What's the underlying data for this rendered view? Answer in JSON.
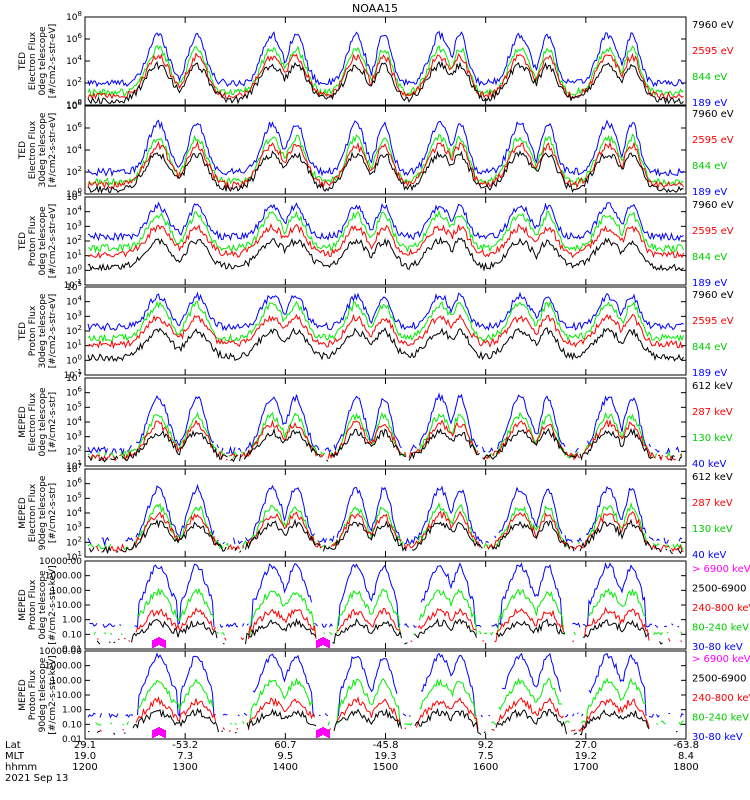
{
  "title": "NOAA15",
  "colors": {
    "c1": "#0000ff",
    "c2": "#ff0000",
    "c3": "#00ee00",
    "c4": "#000000",
    "magenta": "#ff00ff"
  },
  "panels": [
    {
      "ylabel": [
        "TED",
        "Electron Flux",
        "0deg telescope",
        "[#/cm2-s-str-eV]"
      ],
      "yticks": [
        "10^0",
        "10^2",
        "10^4",
        "10^6",
        "10^8"
      ],
      "legend": [
        {
          "text": "7960 eV",
          "color": "#000000"
        },
        {
          "text": "2595 eV",
          "color": "#ff0000"
        },
        {
          "text": "844 eV",
          "color": "#00cc00"
        },
        {
          "text": "189 eV",
          "color": "#0000ff"
        }
      ]
    },
    {
      "ylabel": [
        "TED",
        "Electron Flux",
        "30deg telescope",
        "[#/cm2-s-str-eV]"
      ],
      "yticks": [
        "10^0",
        "10^2",
        "10^4",
        "10^6",
        "10^8"
      ],
      "legend": [
        {
          "text": "7960 eV",
          "color": "#000000"
        },
        {
          "text": "2595 eV",
          "color": "#ff0000"
        },
        {
          "text": "844 eV",
          "color": "#00cc00"
        },
        {
          "text": "189 eV",
          "color": "#0000ff"
        }
      ]
    },
    {
      "ylabel": [
        "TED",
        "Proton Flux",
        "0deg telescope",
        "[#/cm2-s-str-eV]"
      ],
      "yticks": [
        "10^-1",
        "10^0",
        "10^1",
        "10^2",
        "10^3",
        "10^4",
        "10^5"
      ],
      "legend": [
        {
          "text": "7960 eV",
          "color": "#000000"
        },
        {
          "text": "2595 eV",
          "color": "#ff0000"
        },
        {
          "text": "844 eV",
          "color": "#00cc00"
        },
        {
          "text": "189 eV",
          "color": "#0000ff"
        }
      ]
    },
    {
      "ylabel": [
        "TED",
        "Proton Flux",
        "30deg telescope",
        "[#/cm2-s-str-eV]"
      ],
      "yticks": [
        "10^-1",
        "10^0",
        "10^1",
        "10^2",
        "10^3",
        "10^4",
        "10^5"
      ],
      "legend": [
        {
          "text": "7960 eV",
          "color": "#000000"
        },
        {
          "text": "2595 eV",
          "color": "#ff0000"
        },
        {
          "text": "844 eV",
          "color": "#00cc00"
        },
        {
          "text": "189 eV",
          "color": "#0000ff"
        }
      ]
    },
    {
      "ylabel": [
        "MEPED",
        "Electron Flux",
        "0deg telescope",
        "[#/cm2-s-str]"
      ],
      "yticks": [
        "10^1",
        "10^2",
        "10^3",
        "10^4",
        "10^5",
        "10^6",
        "10^7"
      ],
      "legend": [
        {
          "text": "612 keV",
          "color": "#000000"
        },
        {
          "text": "287 keV",
          "color": "#ff0000"
        },
        {
          "text": "130 keV",
          "color": "#00cc00"
        },
        {
          "text": "40 keV",
          "color": "#0000ff"
        }
      ]
    },
    {
      "ylabel": [
        "MEPED",
        "Electron Flux",
        "90deg telescope",
        "[#/cm2-s-str]"
      ],
      "yticks": [
        "10^1",
        "10^2",
        "10^3",
        "10^4",
        "10^5",
        "10^6",
        "10^7"
      ],
      "legend": [
        {
          "text": "612 keV",
          "color": "#000000"
        },
        {
          "text": "287 keV",
          "color": "#ff0000"
        },
        {
          "text": "130 keV",
          "color": "#00cc00"
        },
        {
          "text": "40 keV",
          "color": "#0000ff"
        }
      ]
    },
    {
      "ylabel": [
        "MEPED",
        "Proton Flux",
        "0deg telescope",
        "[#/cm2-s-str-keV]"
      ],
      "yticks": [
        "0.01",
        "0.10",
        "1.00",
        "10.00",
        "100.00",
        "1000.00",
        "10000.00"
      ],
      "legend": [
        {
          "text": "> 6900 keV",
          "color": "#ff00ff"
        },
        {
          "text": "2500-6900",
          "color": "#000000"
        },
        {
          "text": "240-800 keV",
          "color": "#ff0000"
        },
        {
          "text": "80-240 keV",
          "color": "#00cc00"
        },
        {
          "text": "30-80 keV",
          "color": "#0000ff"
        }
      ]
    },
    {
      "ylabel": [
        "MEPED",
        "Proton Flux",
        "90deg telescope",
        "[#/cm2-s-str-keV]"
      ],
      "yticks": [
        "0.01",
        "0.10",
        "1.00",
        "10.00",
        "100.00",
        "1000.00",
        "10000.00"
      ],
      "legend": [
        {
          "text": "> 6900 keV",
          "color": "#ff00ff"
        },
        {
          "text": "2500-6900",
          "color": "#000000"
        },
        {
          "text": "240-800 keV",
          "color": "#ff0000"
        },
        {
          "text": "80-240 keV",
          "color": "#00cc00"
        },
        {
          "text": "30-80 keV",
          "color": "#0000ff"
        }
      ]
    }
  ],
  "xaxis": {
    "row_labels": [
      "Lat",
      "MLT",
      "hhmm"
    ],
    "date": "2021 Sep 13",
    "lat": [
      "29.1",
      "-53.2",
      "60.7",
      "-45.8",
      "9.2",
      "27.0",
      "-63.8"
    ],
    "mlt": [
      "19.0",
      "7.3",
      "9.5",
      "19.3",
      "7.5",
      "19.2",
      "8.4"
    ],
    "hhmm": [
      "1200",
      "1300",
      "1400",
      "1500",
      "1600",
      "1700",
      "1800"
    ]
  },
  "chart_data": {
    "type": "line",
    "title": "NOAA15",
    "x_time_ticks": [
      "1200",
      "1300",
      "1400",
      "1500",
      "1600",
      "1700",
      "1800"
    ],
    "y_scale": "log",
    "time_range": [
      "1200",
      "1800"
    ],
    "note_series": [
      "189 eV",
      "844 eV",
      "2595 eV",
      "7960 eV",
      "40 keV",
      "130 keV",
      "287 keV",
      "612 keV",
      "30-80 keV",
      "80-240 keV",
      "240-800 keV",
      "2500-6900",
      "> 6900 keV"
    ],
    "passes_centers_hhmm": [
      "1212",
      "1242",
      "1314",
      "1330",
      "1412",
      "1430",
      "1500",
      "1536",
      "1550",
      "1624",
      "1710",
      "1740"
    ]
  }
}
